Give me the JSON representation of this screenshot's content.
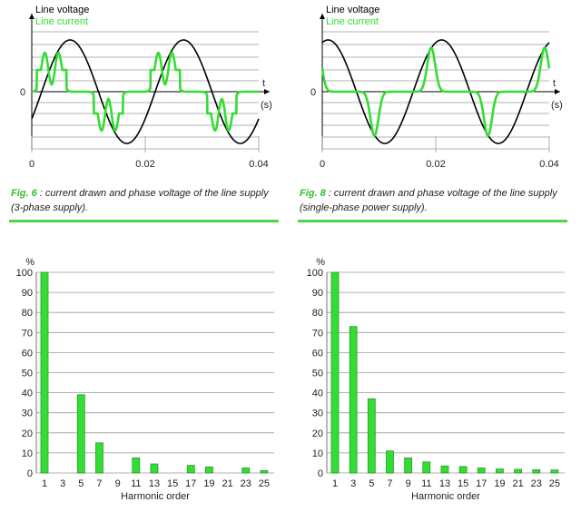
{
  "palette": {
    "green": "#33dd33",
    "green_dark": "#2a9a2a",
    "fig_label": "#2fbf2f",
    "voltage_line": "#000000",
    "grid": "#9a9a9a"
  },
  "waveform_charts": [
    {
      "legend_voltage": "Line voltage",
      "legend_current": "Line current",
      "y_zero_label": "0",
      "x_ticks": [
        "0",
        "0.02",
        "0.04"
      ],
      "t_label": "t",
      "unit_label": "(s)",
      "caption_fig": "Fig. 6",
      "caption_text": " : current drawn and phase voltage of the line supply (3-phase supply)."
    },
    {
      "legend_voltage": "Line voltage",
      "legend_current": "Line current",
      "y_zero_label": "0",
      "x_ticks": [
        "0",
        "0.02",
        "0.04"
      ],
      "t_label": "t",
      "unit_label": "(s)",
      "caption_fig": "Fig. 8",
      "caption_text": " : current drawn and phase voltage of the line supply (single-phase power supply)."
    }
  ],
  "chart_data": [
    {
      "type": "line",
      "x_range": [
        0,
        0.04
      ],
      "series": [
        {
          "name": "Line voltage",
          "form": "sine 50 Hz"
        },
        {
          "name": "Line current",
          "form": "double-hump 6-pulse rectifier current"
        }
      ]
    },
    {
      "type": "line",
      "x_range": [
        0,
        0.04
      ],
      "series": [
        {
          "name": "Line voltage",
          "form": "sine 50 Hz"
        },
        {
          "name": "Line current",
          "form": "single-pulse capacitor charging current"
        }
      ]
    },
    {
      "type": "bar",
      "ylabel": "%",
      "xlabel": "Harmonic order",
      "ylim": [
        0,
        100
      ],
      "y_ticks": [
        0,
        10,
        20,
        30,
        40,
        50,
        60,
        70,
        80,
        90,
        100
      ],
      "categories": [
        "1",
        "3",
        "5",
        "7",
        "9",
        "11",
        "13",
        "15",
        "17",
        "19",
        "21",
        "23",
        "25"
      ],
      "values": [
        100,
        0,
        39,
        15,
        0,
        7.5,
        4.5,
        0,
        3.8,
        3,
        0,
        2.5,
        1.2
      ]
    },
    {
      "type": "bar",
      "ylabel": "%",
      "xlabel": "Harmonic order",
      "ylim": [
        0,
        100
      ],
      "y_ticks": [
        0,
        10,
        20,
        30,
        40,
        50,
        60,
        70,
        80,
        90,
        100
      ],
      "categories": [
        "1",
        "3",
        "5",
        "7",
        "9",
        "11",
        "13",
        "15",
        "17",
        "19",
        "21",
        "23",
        "25"
      ],
      "values": [
        100,
        73,
        37,
        11,
        7.5,
        5.5,
        3.5,
        3.2,
        2.5,
        2,
        1.8,
        1.6,
        1.5
      ]
    }
  ]
}
